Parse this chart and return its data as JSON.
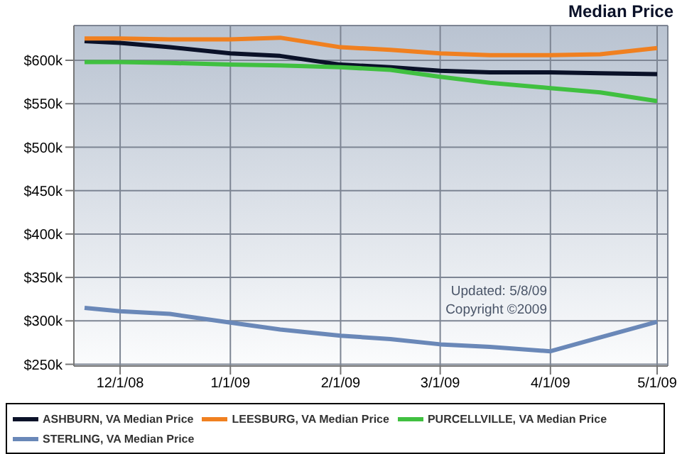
{
  "chart_data": {
    "type": "line",
    "title": "Median Price",
    "annotations": [
      "Updated: 5/8/09",
      "Copyright ©2009"
    ],
    "x": [
      "2008-11-21",
      "2008-12-01",
      "2008-12-15",
      "2009-01-01",
      "2009-01-15",
      "2009-02-01",
      "2009-02-15",
      "2009-03-01",
      "2009-03-15",
      "2009-04-01",
      "2009-04-15",
      "2009-05-01"
    ],
    "series": [
      {
        "name": "ASHBURN, VA Median Price",
        "color": "#0a1128",
        "values": [
          622,
          620,
          615,
          608,
          605,
          595,
          592,
          588,
          586,
          586,
          585,
          584
        ]
      },
      {
        "name": "LEESBURG, VA Median Price",
        "color": "#f08020",
        "values": [
          625,
          625,
          624,
          624,
          626,
          615,
          612,
          608,
          606,
          606,
          607,
          614
        ]
      },
      {
        "name": "PURCELLVILLE, VA Median Price",
        "color": "#40c040",
        "values": [
          598,
          598,
          597,
          595,
          594,
          592,
          589,
          581,
          574,
          568,
          563,
          553
        ]
      },
      {
        "name": "STERLING, VA Median Price",
        "color": "#6a88b8",
        "values": [
          315,
          311,
          308,
          298,
          290,
          283,
          279,
          273,
          270,
          265,
          281,
          299
        ]
      }
    ],
    "xlim": [
      "2008-11-18",
      "2009-05-04"
    ],
    "xticks": [
      {
        "value": "2008-12-01",
        "label": "12/1/08"
      },
      {
        "value": "2009-01-01",
        "label": "1/1/09"
      },
      {
        "value": "2009-02-01",
        "label": "2/1/09"
      },
      {
        "value": "2009-03-01",
        "label": "3/1/09"
      },
      {
        "value": "2009-04-01",
        "label": "4/1/09"
      },
      {
        "value": "2009-05-01",
        "label": "5/1/09"
      }
    ],
    "ylim": [
      248,
      640
    ],
    "yticks": [
      {
        "value": 250,
        "label": "$250k"
      },
      {
        "value": 300,
        "label": "$300k"
      },
      {
        "value": 350,
        "label": "$350k"
      },
      {
        "value": 400,
        "label": "$400k"
      },
      {
        "value": 450,
        "label": "$450k"
      },
      {
        "value": 500,
        "label": "$500k"
      },
      {
        "value": 550,
        "label": "$550k"
      },
      {
        "value": 600,
        "label": "$600k"
      }
    ],
    "grid": true,
    "legend": "bottom",
    "line_style": "solid",
    "marker": "none"
  }
}
